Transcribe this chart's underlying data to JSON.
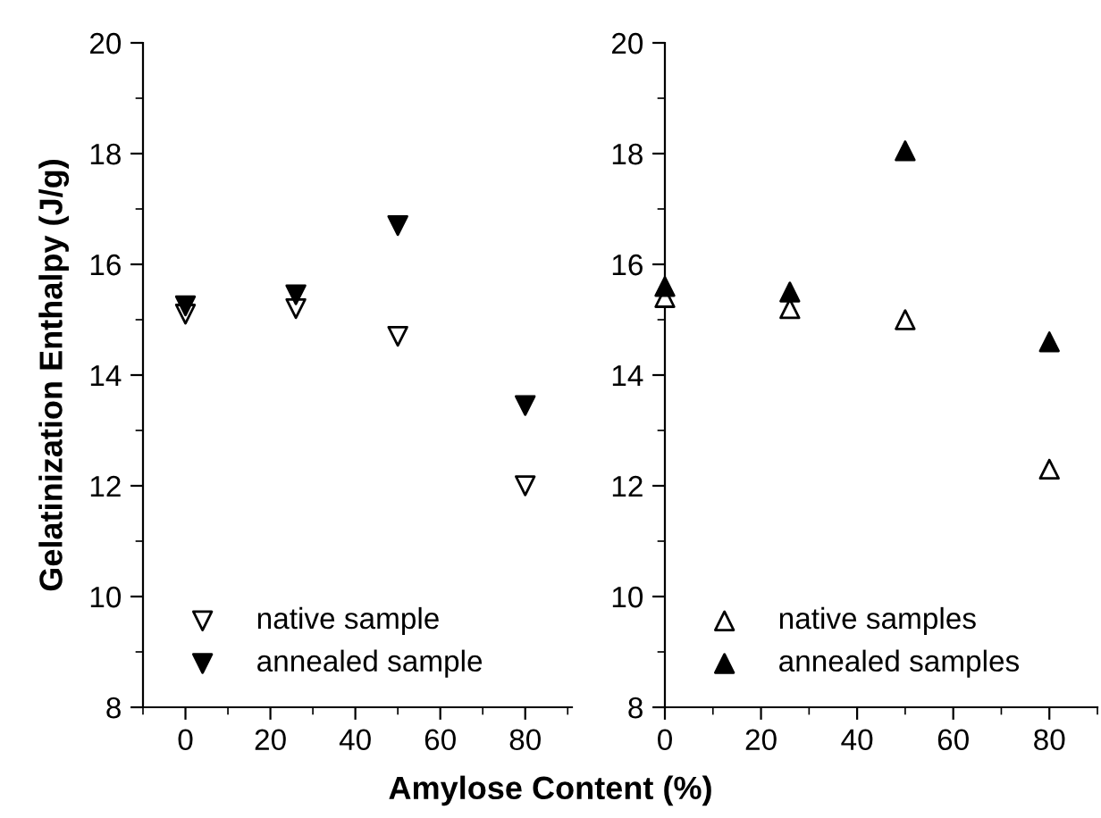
{
  "chart_data": [
    {
      "type": "scatter",
      "xlabel": "Amylose Content (%)",
      "ylabel": "Gelatinization Enthalpy (J/g)",
      "x": [
        0,
        26,
        50,
        80
      ],
      "xlim": [
        -10,
        91
      ],
      "xticks": [
        0,
        20,
        40,
        60,
        80
      ],
      "ylim": [
        8,
        20
      ],
      "yticks": [
        8,
        10,
        12,
        14,
        16,
        18,
        20
      ],
      "marker": "triangle_down",
      "legend": "bottom left",
      "grid": false,
      "series": [
        {
          "name": "native sample",
          "color": "#ffffff",
          "values": [
            15.1,
            15.2,
            14.7,
            12.0
          ]
        },
        {
          "name": "annealed sample",
          "color": "#000000",
          "values": [
            15.25,
            15.45,
            16.7,
            13.45
          ]
        }
      ]
    },
    {
      "type": "scatter",
      "x": [
        0,
        26,
        50,
        80
      ],
      "xlim": [
        0,
        90
      ],
      "xticks": [
        0,
        20,
        40,
        60,
        80
      ],
      "ylim": [
        8,
        20
      ],
      "yticks": [
        8,
        10,
        12,
        14,
        16,
        18,
        20
      ],
      "marker": "triangle",
      "legend": "bottom left",
      "grid": false,
      "series": [
        {
          "name": "native samples",
          "color": "#ffffff",
          "values": [
            15.4,
            15.2,
            15.0,
            12.3
          ]
        },
        {
          "name": "annealed samples",
          "color": "#000000",
          "values": [
            15.6,
            15.5,
            18.05,
            14.6
          ]
        }
      ]
    }
  ]
}
